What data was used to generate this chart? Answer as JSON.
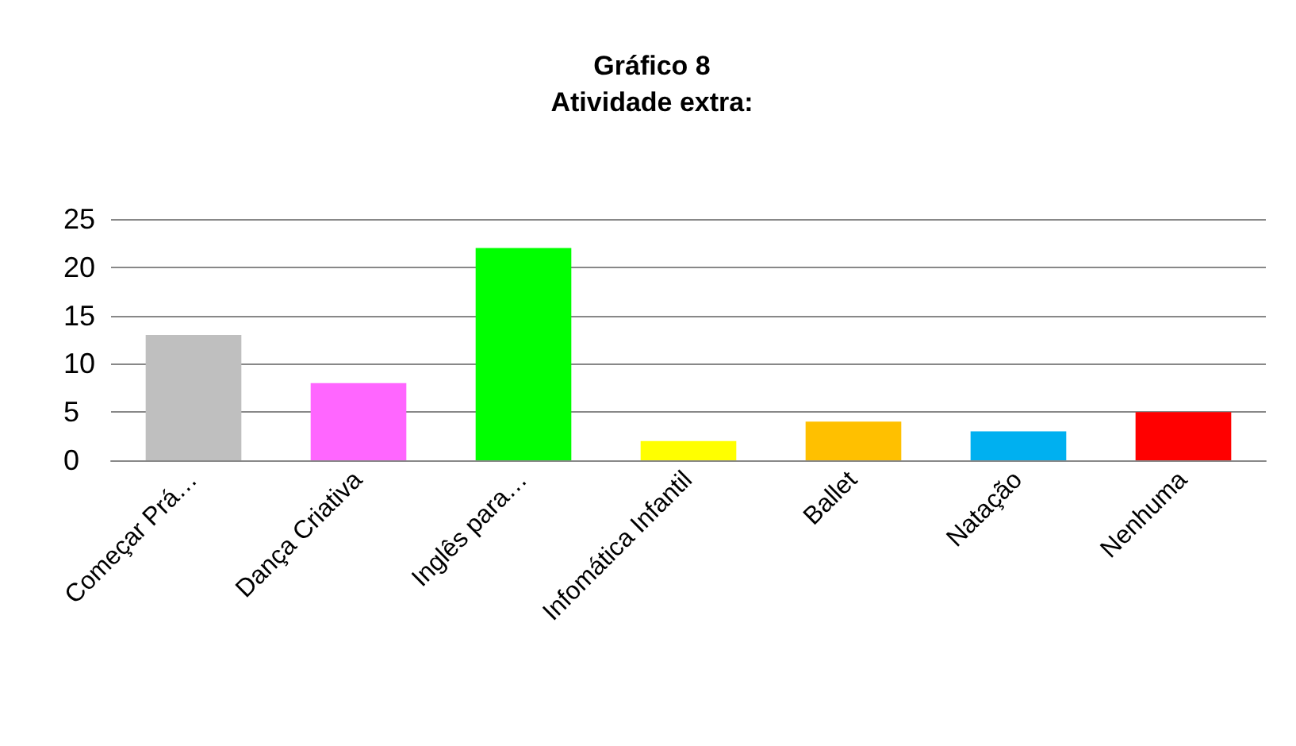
{
  "chart_data": {
    "type": "bar",
    "title": "Gráfico 8",
    "subtitle": "Atividade extra:",
    "categories": [
      "Começar Prá…",
      "Dança Criativa",
      "Inglês para…",
      "Infomática Infantil",
      "Ballet",
      "Natação",
      "Nenhuma"
    ],
    "values": [
      13,
      8,
      22,
      2,
      4,
      3,
      5
    ],
    "colors": [
      "#bfbfbf",
      "#ff66ff",
      "#00ff00",
      "#ffff00",
      "#ffc000",
      "#00b0f0",
      "#ff0000"
    ],
    "ylim": [
      0,
      25
    ],
    "yticks": [
      0,
      5,
      10,
      15,
      20,
      25
    ],
    "grid": "y"
  }
}
